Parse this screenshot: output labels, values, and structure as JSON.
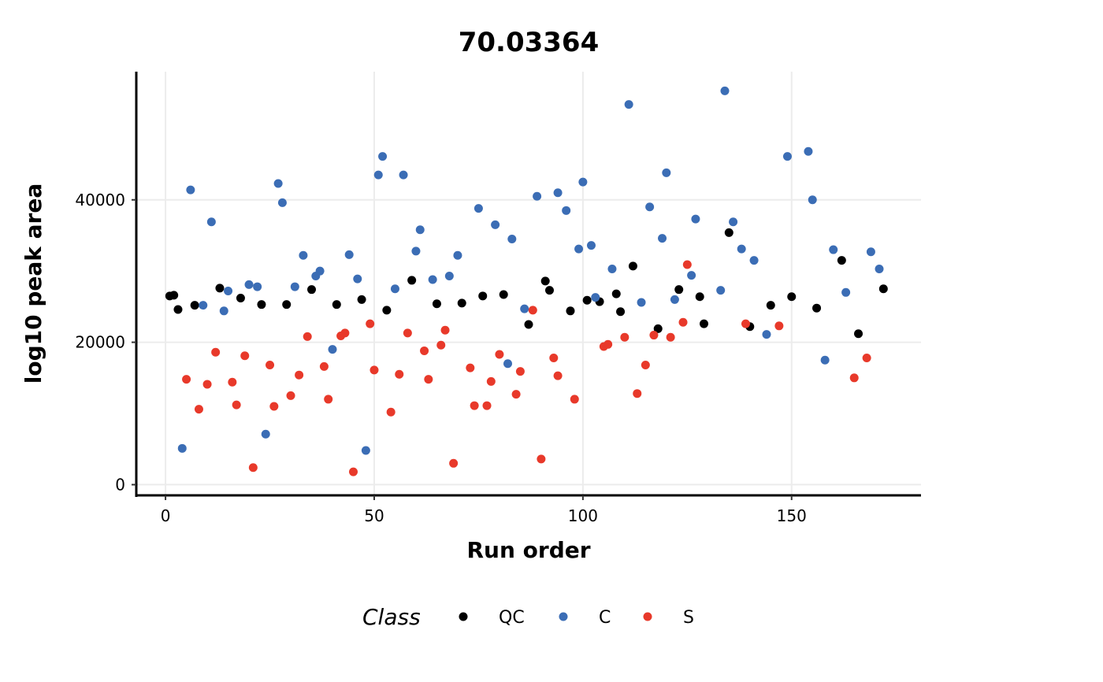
{
  "chart_data": {
    "type": "scatter",
    "title": "70.03364",
    "xlabel": "Run order",
    "ylabel": "log10 peak area",
    "xlim": [
      -7,
      181
    ],
    "ylim": [
      -1500,
      58000
    ],
    "xticks": [
      0,
      50,
      100,
      150
    ],
    "yticks": [
      0,
      20000,
      40000
    ],
    "grid": true,
    "legend": {
      "title": "Class",
      "position": "bottom"
    },
    "series": [
      {
        "name": "QC",
        "color": "#000000",
        "points": [
          [
            1,
            26500
          ],
          [
            2,
            26600
          ],
          [
            3,
            24600
          ],
          [
            7,
            25200
          ],
          [
            13,
            27600
          ],
          [
            18,
            26200
          ],
          [
            23,
            25300
          ],
          [
            29,
            25300
          ],
          [
            35,
            27400
          ],
          [
            41,
            25300
          ],
          [
            47,
            26000
          ],
          [
            53,
            24500
          ],
          [
            59,
            28700
          ],
          [
            65,
            25400
          ],
          [
            71,
            25500
          ],
          [
            76,
            26500
          ],
          [
            81,
            26700
          ],
          [
            87,
            22500
          ],
          [
            91,
            28600
          ],
          [
            92,
            27300
          ],
          [
            97,
            24400
          ],
          [
            101,
            25900
          ],
          [
            104,
            25700
          ],
          [
            108,
            26800
          ],
          [
            109,
            24300
          ],
          [
            112,
            30700
          ],
          [
            118,
            21900
          ],
          [
            123,
            27400
          ],
          [
            128,
            26400
          ],
          [
            129,
            22600
          ],
          [
            135,
            35400
          ],
          [
            140,
            22200
          ],
          [
            145,
            25200
          ],
          [
            150,
            26400
          ],
          [
            156,
            24800
          ],
          [
            162,
            31500
          ],
          [
            166,
            21200
          ],
          [
            172,
            27500
          ]
        ]
      },
      {
        "name": "C",
        "color": "#3B6DB5",
        "points": [
          [
            4,
            5100
          ],
          [
            6,
            41400
          ],
          [
            9,
            25200
          ],
          [
            11,
            36900
          ],
          [
            14,
            24400
          ],
          [
            15,
            27200
          ],
          [
            20,
            28100
          ],
          [
            22,
            27800
          ],
          [
            24,
            7100
          ],
          [
            27,
            42300
          ],
          [
            28,
            39600
          ],
          [
            31,
            27800
          ],
          [
            33,
            32200
          ],
          [
            36,
            29300
          ],
          [
            37,
            30000
          ],
          [
            40,
            19000
          ],
          [
            44,
            32300
          ],
          [
            46,
            28900
          ],
          [
            48,
            4800
          ],
          [
            51,
            43500
          ],
          [
            52,
            46100
          ],
          [
            55,
            27500
          ],
          [
            57,
            43500
          ],
          [
            60,
            32800
          ],
          [
            61,
            35800
          ],
          [
            64,
            28800
          ],
          [
            68,
            29300
          ],
          [
            70,
            32200
          ],
          [
            75,
            38800
          ],
          [
            79,
            36500
          ],
          [
            82,
            17000
          ],
          [
            83,
            34500
          ],
          [
            86,
            24700
          ],
          [
            89,
            40500
          ],
          [
            94,
            41000
          ],
          [
            96,
            38500
          ],
          [
            99,
            33100
          ],
          [
            100,
            42500
          ],
          [
            102,
            33600
          ],
          [
            103,
            26300
          ],
          [
            107,
            30300
          ],
          [
            111,
            53400
          ],
          [
            114,
            25600
          ],
          [
            116,
            39000
          ],
          [
            119,
            34600
          ],
          [
            120,
            43800
          ],
          [
            122,
            26000
          ],
          [
            126,
            29400
          ],
          [
            127,
            37300
          ],
          [
            133,
            27300
          ],
          [
            134,
            55300
          ],
          [
            136,
            36900
          ],
          [
            138,
            33100
          ],
          [
            141,
            31500
          ],
          [
            144,
            21100
          ],
          [
            149,
            46100
          ],
          [
            154,
            46800
          ],
          [
            155,
            40000
          ],
          [
            158,
            17500
          ],
          [
            160,
            33000
          ],
          [
            163,
            27000
          ],
          [
            169,
            32700
          ],
          [
            171,
            30300
          ]
        ]
      },
      {
        "name": "S",
        "color": "#E8392A",
        "points": [
          [
            5,
            14800
          ],
          [
            8,
            10600
          ],
          [
            10,
            14100
          ],
          [
            12,
            18600
          ],
          [
            16,
            14400
          ],
          [
            17,
            11200
          ],
          [
            19,
            18100
          ],
          [
            21,
            2400
          ],
          [
            25,
            16800
          ],
          [
            26,
            11000
          ],
          [
            30,
            12500
          ],
          [
            32,
            15400
          ],
          [
            34,
            20800
          ],
          [
            38,
            16600
          ],
          [
            39,
            12000
          ],
          [
            42,
            20900
          ],
          [
            43,
            21300
          ],
          [
            45,
            1800
          ],
          [
            49,
            22600
          ],
          [
            50,
            16100
          ],
          [
            54,
            10200
          ],
          [
            56,
            15500
          ],
          [
            58,
            21300
          ],
          [
            62,
            18800
          ],
          [
            63,
            14800
          ],
          [
            66,
            19600
          ],
          [
            67,
            21700
          ],
          [
            69,
            3000
          ],
          [
            73,
            16400
          ],
          [
            74,
            11100
          ],
          [
            77,
            11100
          ],
          [
            78,
            14500
          ],
          [
            80,
            18300
          ],
          [
            84,
            12700
          ],
          [
            85,
            15900
          ],
          [
            88,
            24500
          ],
          [
            90,
            3600
          ],
          [
            93,
            17800
          ],
          [
            94,
            15300
          ],
          [
            98,
            12000
          ],
          [
            105,
            19400
          ],
          [
            106,
            19700
          ],
          [
            110,
            20700
          ],
          [
            113,
            12800
          ],
          [
            115,
            16800
          ],
          [
            117,
            21000
          ],
          [
            121,
            20700
          ],
          [
            124,
            22800
          ],
          [
            125,
            30900
          ],
          [
            139,
            22600
          ],
          [
            147,
            22300
          ],
          [
            165,
            15000
          ],
          [
            168,
            17800
          ]
        ]
      }
    ]
  }
}
